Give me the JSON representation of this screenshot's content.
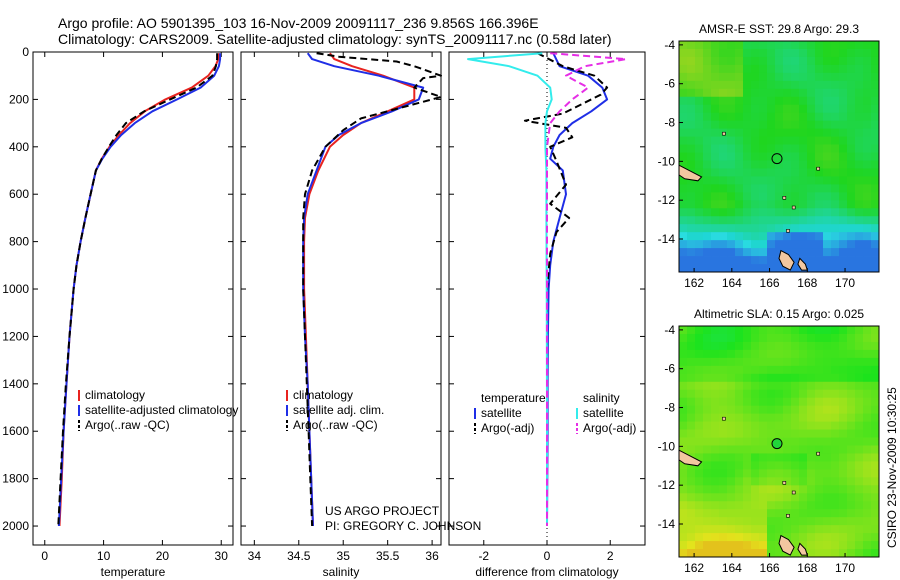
{
  "header": {
    "title_line1": "Argo profile: AO 5901395_103 16-Nov-2009 20091117_236 9.856S 166.396E",
    "title_line2": "Climatology: CARS2009. Satellite-adjusted climatology: synTS_20091117.nc (0.58d later)"
  },
  "side_label": "CSIRO 23-Nov-2009 10:30:25",
  "project_credit": {
    "line1": "US ARGO PROJECT",
    "line2": "PI: GREGORY C. JOHNSON"
  },
  "colors": {
    "climatology": "#e8231f",
    "satellite": "#1f2ee6",
    "argo": "#000000",
    "salinity_satellite": "#33ecec",
    "salinity_argo": "#e62ee6",
    "ocean_green": "#22d63a",
    "land": "#f2c7a0"
  },
  "chart_data": [
    {
      "type": "line",
      "id": "temperature",
      "xlabel": "temperature",
      "ylabel": "",
      "xlim": [
        -2,
        32
      ],
      "ylim": [
        2080,
        0
      ],
      "xticks": [
        0,
        10,
        20,
        30
      ],
      "yticks": [
        0,
        200,
        400,
        600,
        800,
        1000,
        1200,
        1400,
        1600,
        1800,
        2000
      ],
      "legend": {
        "position": "bottom-right",
        "entries": [
          "climatology",
          "satellite-adjusted climatology",
          "Argo(..raw -QC)"
        ]
      },
      "series": [
        {
          "name": "climatology",
          "color": "#e8231f",
          "dash": false,
          "points": [
            [
              29.6,
              5
            ],
            [
              29.5,
              30
            ],
            [
              29.0,
              60
            ],
            [
              27.8,
              100
            ],
            [
              25.0,
              150
            ],
            [
              20.5,
              200
            ],
            [
              17.0,
              250
            ],
            [
              14.5,
              300
            ],
            [
              12.6,
              350
            ],
            [
              11.0,
              400
            ],
            [
              9.7,
              450
            ],
            [
              8.7,
              500
            ],
            [
              7.8,
              600
            ],
            [
              6.9,
              700
            ],
            [
              6.1,
              800
            ],
            [
              5.4,
              900
            ],
            [
              4.9,
              1000
            ],
            [
              4.2,
              1200
            ],
            [
              3.7,
              1400
            ],
            [
              3.2,
              1600
            ],
            [
              2.9,
              1800
            ],
            [
              2.5,
              2000
            ]
          ]
        },
        {
          "name": "satellite-adjusted climatology",
          "color": "#1f2ee6",
          "dash": false,
          "points": [
            [
              29.8,
              5
            ],
            [
              29.8,
              30
            ],
            [
              29.6,
              60
            ],
            [
              28.8,
              100
            ],
            [
              26.5,
              150
            ],
            [
              22.5,
              200
            ],
            [
              18.3,
              250
            ],
            [
              15.3,
              300
            ],
            [
              13.0,
              350
            ],
            [
              11.2,
              400
            ],
            [
              9.8,
              450
            ],
            [
              8.7,
              500
            ],
            [
              7.8,
              600
            ],
            [
              6.9,
              700
            ],
            [
              6.1,
              800
            ],
            [
              5.4,
              900
            ],
            [
              4.9,
              1000
            ],
            [
              4.2,
              1200
            ],
            [
              3.7,
              1400
            ],
            [
              3.2,
              1600
            ],
            [
              2.8,
              1800
            ],
            [
              2.4,
              2000
            ]
          ]
        },
        {
          "name": "Argo(..raw -QC)",
          "color": "#000000",
          "dash": true,
          "points": [
            [
              29.3,
              5
            ],
            [
              29.3,
              30
            ],
            [
              29.1,
              60
            ],
            [
              28.5,
              100
            ],
            [
              25.8,
              150
            ],
            [
              21.3,
              200
            ],
            [
              16.9,
              250
            ],
            [
              13.8,
              300
            ],
            [
              12.2,
              350
            ],
            [
              10.9,
              400
            ],
            [
              9.7,
              450
            ],
            [
              8.7,
              500
            ],
            [
              7.8,
              600
            ],
            [
              6.9,
              700
            ],
            [
              6.1,
              800
            ],
            [
              5.4,
              900
            ],
            [
              4.9,
              1000
            ],
            [
              4.2,
              1200
            ],
            [
              3.6,
              1400
            ],
            [
              3.1,
              1600
            ],
            [
              2.7,
              1800
            ],
            [
              2.3,
              2000
            ]
          ]
        }
      ]
    },
    {
      "type": "line",
      "id": "salinity",
      "xlabel": "salinity",
      "ylabel": "",
      "xlim": [
        33.85,
        36.1
      ],
      "ylim": [
        2080,
        0
      ],
      "xticks": [
        34,
        34.5,
        35,
        35.5,
        36
      ],
      "legend": {
        "position": "bottom-right",
        "entries": [
          "climatology",
          "satellite adj. clim.",
          "Argo(..raw -QC)"
        ]
      },
      "series": [
        {
          "name": "climatology",
          "color": "#e8231f",
          "dash": false,
          "points": [
            [
              34.85,
              5
            ],
            [
              34.9,
              30
            ],
            [
              35.1,
              60
            ],
            [
              35.45,
              100
            ],
            [
              35.8,
              150
            ],
            [
              35.8,
              200
            ],
            [
              35.5,
              250
            ],
            [
              35.2,
              300
            ],
            [
              35.0,
              350
            ],
            [
              34.85,
              400
            ],
            [
              34.72,
              500
            ],
            [
              34.62,
              600
            ],
            [
              34.57,
              700
            ],
            [
              34.56,
              800
            ],
            [
              34.56,
              1000
            ],
            [
              34.58,
              1200
            ],
            [
              34.6,
              1400
            ],
            [
              34.62,
              1600
            ],
            [
              34.64,
              1800
            ],
            [
              34.66,
              2000
            ]
          ]
        },
        {
          "name": "satellite adj. clim.",
          "color": "#1f2ee6",
          "dash": false,
          "points": [
            [
              34.6,
              5
            ],
            [
              34.65,
              30
            ],
            [
              34.9,
              60
            ],
            [
              35.4,
              100
            ],
            [
              35.9,
              150
            ],
            [
              35.85,
              200
            ],
            [
              35.55,
              250
            ],
            [
              35.2,
              300
            ],
            [
              34.95,
              350
            ],
            [
              34.8,
              400
            ],
            [
              34.7,
              500
            ],
            [
              34.6,
              600
            ],
            [
              34.56,
              700
            ],
            [
              34.55,
              800
            ],
            [
              34.55,
              1000
            ],
            [
              34.57,
              1200
            ],
            [
              34.6,
              1400
            ],
            [
              34.62,
              1600
            ],
            [
              34.64,
              1800
            ],
            [
              34.66,
              2000
            ]
          ]
        },
        {
          "name": "Argo(..raw -QC)",
          "color": "#000000",
          "dash": true,
          "points": [
            [
              34.7,
              5
            ],
            [
              34.95,
              20
            ],
            [
              35.6,
              40
            ],
            [
              35.8,
              60
            ],
            [
              36.1,
              100
            ],
            [
              35.9,
              110
            ],
            [
              35.8,
              150
            ],
            [
              36.1,
              190
            ],
            [
              35.7,
              230
            ],
            [
              35.2,
              280
            ],
            [
              35.0,
              330
            ],
            [
              34.8,
              400
            ],
            [
              34.65,
              500
            ],
            [
              34.57,
              600
            ],
            [
              34.55,
              700
            ],
            [
              34.55,
              800
            ],
            [
              34.55,
              1000
            ],
            [
              34.57,
              1200
            ],
            [
              34.59,
              1400
            ],
            [
              34.61,
              1600
            ],
            [
              34.63,
              1800
            ],
            [
              34.65,
              2000
            ]
          ]
        }
      ]
    },
    {
      "type": "line",
      "id": "difference",
      "xlabel": "difference from climatology",
      "ylabel": "",
      "xlim": [
        -3.1,
        3.1
      ],
      "ylim": [
        2080,
        0
      ],
      "xticks": [
        -2,
        0,
        2
      ],
      "legend": {
        "position": "bottom",
        "columns": [
          {
            "heading": "temperature",
            "entries": [
              "satellite",
              "Argo(-adj)"
            ]
          },
          {
            "heading": "salinity",
            "entries": [
              "satellite",
              "Argo(-adj)"
            ]
          }
        ]
      },
      "series": [
        {
          "name": "temperature satellite",
          "color": "#1f2ee6",
          "dash": false,
          "points": [
            [
              0.2,
              5
            ],
            [
              0.4,
              60
            ],
            [
              1.3,
              100
            ],
            [
              1.75,
              150
            ],
            [
              1.9,
              200
            ],
            [
              1.4,
              250
            ],
            [
              0.8,
              300
            ],
            [
              0.4,
              350
            ],
            [
              0.2,
              400
            ],
            [
              0.1,
              450
            ],
            [
              0.5,
              500
            ],
            [
              0.6,
              600
            ],
            [
              0.4,
              700
            ],
            [
              0.2,
              800
            ],
            [
              0.1,
              900
            ],
            [
              0.05,
              1000
            ],
            [
              0.03,
              1200
            ],
            [
              0.02,
              1400
            ],
            [
              0.02,
              1600
            ],
            [
              0.01,
              1800
            ],
            [
              0.0,
              2000
            ]
          ]
        },
        {
          "name": "temperature Argo(-adj)",
          "color": "#000000",
          "dash": true,
          "points": [
            [
              -0.3,
              5
            ],
            [
              0.5,
              60
            ],
            [
              1.5,
              100
            ],
            [
              1.9,
              150
            ],
            [
              1.7,
              180
            ],
            [
              0.5,
              260
            ],
            [
              -0.7,
              290
            ],
            [
              0.6,
              320
            ],
            [
              0.8,
              360
            ],
            [
              0.1,
              400
            ],
            [
              0.3,
              460
            ],
            [
              0.6,
              560
            ],
            [
              0.1,
              640
            ],
            [
              0.7,
              700
            ],
            [
              0.3,
              760
            ],
            [
              0.1,
              850
            ],
            [
              0.0,
              1000
            ],
            [
              0.0,
              1200
            ],
            [
              0.0,
              1400
            ],
            [
              0.0,
              1600
            ],
            [
              0.0,
              1800
            ],
            [
              0.0,
              2000
            ]
          ]
        },
        {
          "name": "salinity satellite",
          "color": "#33ecec",
          "dash": false,
          "points": [
            [
              -0.15,
              5
            ],
            [
              -2.5,
              30
            ],
            [
              -1.2,
              60
            ],
            [
              -0.3,
              100
            ],
            [
              0.1,
              150
            ],
            [
              0.15,
              200
            ],
            [
              0.0,
              250
            ],
            [
              -0.05,
              300
            ],
            [
              -0.05,
              400
            ],
            [
              -0.02,
              500
            ],
            [
              -0.02,
              700
            ],
            [
              -0.01,
              1000
            ],
            [
              0.0,
              1500
            ],
            [
              0.0,
              2000
            ]
          ]
        },
        {
          "name": "salinity Argo(-adj)",
          "color": "#e62ee6",
          "dash": true,
          "points": [
            [
              0.1,
              5
            ],
            [
              2.5,
              30
            ],
            [
              1.2,
              60
            ],
            [
              0.6,
              100
            ],
            [
              1.3,
              150
            ],
            [
              0.8,
              200
            ],
            [
              0.4,
              250
            ],
            [
              0.1,
              300
            ],
            [
              0.0,
              400
            ],
            [
              0.0,
              700
            ],
            [
              0.0,
              1000
            ],
            [
              0.0,
              2000
            ]
          ]
        }
      ]
    },
    {
      "type": "heatmap",
      "id": "sst_map",
      "title": "AMSR-E SST: 29.8 Argo: 29.3",
      "xlim": [
        161.2,
        171.8
      ],
      "ylim": [
        -15.7,
        -3.8
      ],
      "xticks": [
        162,
        164,
        166,
        168,
        170
      ],
      "yticks": [
        -4,
        -6,
        -8,
        -10,
        -12,
        -14
      ],
      "argo_marker": {
        "lon": 166.396,
        "lat": -9.856
      }
    },
    {
      "type": "heatmap",
      "id": "sla_map",
      "title": "Altimetric SLA: 0.15 Argo: 0.025",
      "xlim": [
        161.2,
        171.8
      ],
      "ylim": [
        -15.7,
        -3.8
      ],
      "xticks": [
        162,
        164,
        166,
        168,
        170
      ],
      "yticks": [
        -4,
        -6,
        -8,
        -10,
        -12,
        -14
      ],
      "argo_marker": {
        "lon": 166.396,
        "lat": -9.856
      }
    }
  ]
}
